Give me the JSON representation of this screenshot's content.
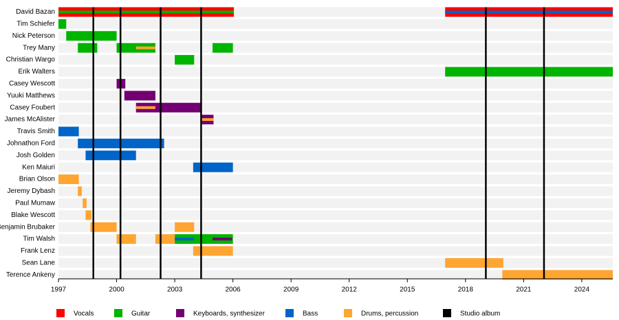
{
  "chart_data": {
    "type": "timeline",
    "members": [
      "David Bazan",
      "Tim Schiefer",
      "Nick Peterson",
      "Trey Many",
      "Christian Wargo",
      "Erik Walters",
      "Casey Wescott",
      "Yuuki Matthews",
      "Casey Foubert",
      "James McAlister",
      "Travis Smith",
      "Johnathon Ford",
      "Josh Golden",
      "Ken Maiuri",
      "Brian Olson",
      "Jeremy Dybash",
      "Paul Mumaw",
      "Blake Wescott",
      "Benjamin Brubaker",
      "Tim Walsh",
      "Frank Lenz",
      "Sean Lane",
      "Terence Ankeny"
    ],
    "series": [
      {
        "name": "Vocals",
        "color": "#ff0000",
        "bars": [
          [
            0,
            1997,
            2006.05
          ],
          [
            0,
            2016.95,
            2025.6
          ]
        ]
      },
      {
        "name": "Guitar",
        "color": "#00b400",
        "bars": [
          [
            0,
            1997,
            2006.05
          ],
          [
            1,
            1997,
            1997.4
          ],
          [
            2,
            1997.4,
            2000.0
          ],
          [
            3,
            1998.0,
            1999.0
          ],
          [
            3,
            2000.0,
            2002.0
          ],
          [
            3,
            2004.95,
            2006.0
          ],
          [
            4,
            2003.0,
            2004.0
          ],
          [
            5,
            2016.95,
            2025.6
          ],
          [
            19,
            2003.0,
            2006.0
          ]
        ]
      },
      {
        "name": "Keyboards, synthesizer",
        "color": "#730073",
        "bars": [
          [
            6,
            2000.0,
            2000.45
          ],
          [
            7,
            2000.4,
            2002.0
          ],
          [
            8,
            2001.0,
            2004.4
          ],
          [
            9,
            2004.4,
            2005.0
          ],
          [
            19,
            2004.95,
            2005.95
          ]
        ]
      },
      {
        "name": "Bass",
        "color": "#0064c8",
        "bars": [
          [
            0,
            2016.95,
            2025.6
          ],
          [
            10,
            1997,
            1998.05
          ],
          [
            11,
            1998.0,
            2002.45
          ],
          [
            12,
            1998.4,
            2001.0
          ],
          [
            13,
            2003.95,
            2006.0
          ],
          [
            19,
            2003.0,
            2004.0
          ]
        ]
      },
      {
        "name": "Drums, percussion",
        "color": "#ffa532",
        "bars": [
          [
            3,
            2001.0,
            2002.0
          ],
          [
            8,
            2001.0,
            2002.0
          ],
          [
            9,
            2004.4,
            2005.0
          ],
          [
            14,
            1997,
            1998.05
          ],
          [
            15,
            1998.0,
            1998.2
          ],
          [
            16,
            1998.25,
            1998.45
          ],
          [
            17,
            1998.4,
            1998.7
          ],
          [
            18,
            1998.65,
            2000.0
          ],
          [
            18,
            2003.0,
            2004.0
          ],
          [
            19,
            2000.0,
            2001.0
          ],
          [
            19,
            2002.0,
            2003.0
          ],
          [
            20,
            2003.95,
            2006.0
          ],
          [
            21,
            2016.95,
            2019.95
          ],
          [
            22,
            2019.9,
            2025.6
          ]
        ]
      }
    ],
    "albums": {
      "name": "Studio album",
      "color": "#000000",
      "values": [
        1998.8,
        2000.2,
        2002.27,
        2004.36,
        2019.05,
        2022.05
      ]
    },
    "xlim": [
      1997,
      2025.6
    ],
    "xticks": [
      1997,
      2000,
      2003,
      2006,
      2009,
      2012,
      2015,
      2018,
      2021,
      2024
    ]
  }
}
